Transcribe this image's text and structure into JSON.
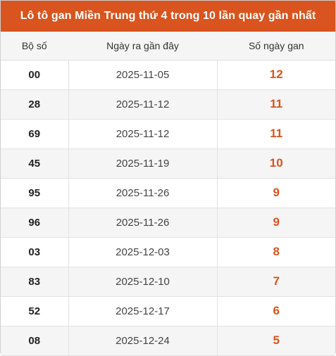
{
  "title": "Lô tô gan Miền Trung thứ 4 trong 10 lần quay gần nhất",
  "colors": {
    "accent": "#d9541e",
    "header_bg": "#f5f5f5"
  },
  "headers": [
    "Bộ số",
    "Ngày ra gần đây",
    "Số ngày gan"
  ],
  "rows": [
    {
      "number": "00",
      "date": "2025-11-05",
      "days": "12"
    },
    {
      "number": "28",
      "date": "2025-11-12",
      "days": "11"
    },
    {
      "number": "69",
      "date": "2025-11-12",
      "days": "11"
    },
    {
      "number": "45",
      "date": "2025-11-19",
      "days": "10"
    },
    {
      "number": "95",
      "date": "2025-11-26",
      "days": "9"
    },
    {
      "number": "96",
      "date": "2025-11-26",
      "days": "9"
    },
    {
      "number": "03",
      "date": "2025-12-03",
      "days": "8"
    },
    {
      "number": "83",
      "date": "2025-12-10",
      "days": "7"
    },
    {
      "number": "52",
      "date": "2025-12-17",
      "days": "6"
    },
    {
      "number": "08",
      "date": "2025-12-24",
      "days": "5"
    }
  ]
}
